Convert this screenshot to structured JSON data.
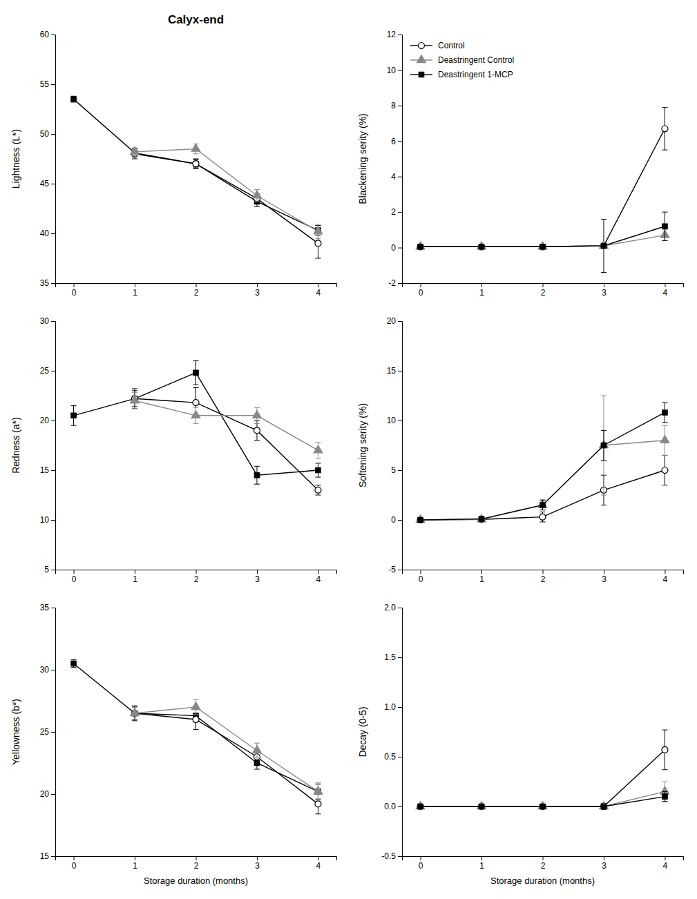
{
  "chart_data": [
    {
      "type": "line",
      "title": "Calyx-end",
      "ylabel": "Lightness (L*)",
      "x": [
        0,
        1,
        2,
        3,
        4
      ],
      "xlim": [
        -0.3,
        4.3
      ],
      "xticks": [
        0,
        1,
        2,
        3,
        4
      ],
      "ylim": [
        35,
        60
      ],
      "yticks": [
        35,
        40,
        45,
        50,
        55,
        60
      ],
      "grid": false,
      "series": [
        {
          "name": "Deastringent 1-MCP",
          "color": "#000000",
          "marker": "square",
          "values": [
            53.5,
            48.1,
            47.0,
            43.2,
            40.3
          ],
          "errors": [
            0.3,
            0.4,
            0.4,
            0.5,
            0.5
          ]
        },
        {
          "name": "Control",
          "color": "#000000",
          "marker": "open-circle",
          "values": [
            null,
            48.0,
            47.0,
            43.5,
            39.0
          ],
          "errors": [
            null,
            0.5,
            0.5,
            0.5,
            1.5
          ]
        },
        {
          "name": "Deastringent Control",
          "color": "#888888",
          "marker": "triangle",
          "values": [
            null,
            48.2,
            48.5,
            43.8,
            40.2
          ],
          "errors": [
            null,
            0.4,
            0.5,
            0.6,
            0.7
          ]
        }
      ]
    },
    {
      "type": "line",
      "ylabel": "Blackening serity (%)",
      "x": [
        0,
        1,
        2,
        3,
        4
      ],
      "xlim": [
        -0.3,
        4.3
      ],
      "xticks": [
        0,
        1,
        2,
        3,
        4
      ],
      "ylim": [
        -2,
        12
      ],
      "yticks": [
        -2,
        0,
        2,
        4,
        6,
        8,
        10,
        12
      ],
      "grid": false,
      "legend": "upper left",
      "series": [
        {
          "name": "Control",
          "color": "#000000",
          "marker": "open-circle",
          "values": [
            0.05,
            0.05,
            0.05,
            0.1,
            6.7
          ],
          "errors": [
            0.05,
            0.05,
            0.05,
            1.5,
            1.2
          ]
        },
        {
          "name": "Deastringent Control",
          "color": "#888888",
          "marker": "triangle",
          "values": [
            0.05,
            0.05,
            0.05,
            0.1,
            0.7
          ],
          "errors": [
            0.05,
            0.05,
            0.05,
            0.1,
            0.3
          ]
        },
        {
          "name": "Deastringent 1-MCP",
          "color": "#000000",
          "marker": "square",
          "values": [
            0.05,
            0.05,
            0.05,
            0.1,
            1.2
          ],
          "errors": [
            0.05,
            0.05,
            0.05,
            0.1,
            0.8
          ]
        }
      ]
    },
    {
      "type": "line",
      "ylabel": "Redness (a*)",
      "x": [
        0,
        1,
        2,
        3,
        4
      ],
      "xlim": [
        -0.3,
        4.3
      ],
      "xticks": [
        0,
        1,
        2,
        3,
        4
      ],
      "ylim": [
        5,
        30
      ],
      "yticks": [
        5,
        10,
        15,
        20,
        25,
        30
      ],
      "grid": false,
      "series": [
        {
          "name": "Deastringent 1-MCP",
          "color": "#000000",
          "marker": "square",
          "values": [
            20.5,
            22.2,
            24.8,
            14.5,
            15.0
          ],
          "errors": [
            1.0,
            0.8,
            1.2,
            0.9,
            0.7
          ]
        },
        {
          "name": "Control",
          "color": "#000000",
          "marker": "open-circle",
          "values": [
            null,
            22.2,
            21.8,
            19.0,
            13.0
          ],
          "errors": [
            null,
            1.0,
            1.5,
            1.0,
            0.5
          ]
        },
        {
          "name": "Deastringent Control",
          "color": "#888888",
          "marker": "triangle",
          "values": [
            null,
            22.0,
            20.5,
            20.5,
            17.0
          ],
          "errors": [
            null,
            0.8,
            0.8,
            0.8,
            0.8
          ]
        }
      ]
    },
    {
      "type": "line",
      "ylabel": "Softening serity (%)",
      "x": [
        0,
        1,
        2,
        3,
        4
      ],
      "xlim": [
        -0.3,
        4.3
      ],
      "xticks": [
        0,
        1,
        2,
        3,
        4
      ],
      "ylim": [
        -5,
        20
      ],
      "yticks": [
        -5,
        0,
        5,
        10,
        15,
        20
      ],
      "grid": false,
      "series": [
        {
          "name": "Control",
          "color": "#000000",
          "marker": "open-circle",
          "values": [
            0.0,
            0.05,
            0.3,
            3.0,
            5.0
          ],
          "errors": [
            0.0,
            0.05,
            0.5,
            1.5,
            1.5
          ]
        },
        {
          "name": "Deastringent Control",
          "color": "#888888",
          "marker": "triangle",
          "values": [
            0.0,
            0.05,
            1.5,
            7.5,
            8.0
          ],
          "errors": [
            0.0,
            0.05,
            0.5,
            5.0,
            1.5
          ]
        },
        {
          "name": "Deastringent 1-MCP",
          "color": "#000000",
          "marker": "square",
          "values": [
            0.0,
            0.1,
            1.5,
            7.5,
            10.8
          ],
          "errors": [
            0.0,
            0.05,
            0.5,
            1.5,
            1.0
          ]
        }
      ]
    },
    {
      "type": "line",
      "ylabel": "Yellowness (b*)",
      "xlabel": "Storage duration (months)",
      "x": [
        0,
        1,
        2,
        3,
        4
      ],
      "xlim": [
        -0.3,
        4.3
      ],
      "xticks": [
        0,
        1,
        2,
        3,
        4
      ],
      "ylim": [
        15,
        35
      ],
      "yticks": [
        15,
        20,
        25,
        30,
        35
      ],
      "grid": false,
      "series": [
        {
          "name": "Deastringent 1-MCP",
          "color": "#000000",
          "marker": "square",
          "values": [
            30.5,
            26.5,
            26.3,
            22.5,
            20.2
          ],
          "errors": [
            0.3,
            0.5,
            0.5,
            0.5,
            0.6
          ]
        },
        {
          "name": "Control",
          "color": "#000000",
          "marker": "open-circle",
          "values": [
            null,
            26.5,
            26.0,
            23.0,
            19.2
          ],
          "errors": [
            null,
            0.6,
            0.8,
            0.6,
            0.8
          ]
        },
        {
          "name": "Deastringent Control",
          "color": "#888888",
          "marker": "triangle",
          "values": [
            null,
            26.5,
            27.0,
            23.5,
            20.2
          ],
          "errors": [
            null,
            0.5,
            0.6,
            0.6,
            0.7
          ]
        }
      ]
    },
    {
      "type": "line",
      "ylabel": "Decay (0-5)",
      "xlabel": "Storage duration (months)",
      "x": [
        0,
        1,
        2,
        3,
        4
      ],
      "xlim": [
        -0.3,
        4.3
      ],
      "xticks": [
        0,
        1,
        2,
        3,
        4
      ],
      "ylim": [
        -0.5,
        2.0
      ],
      "yticks": [
        -0.5,
        {
          "value": 0.0,
          "label": "0.0"
        },
        0.5,
        {
          "value": 1.0,
          "label": "1.0"
        },
        1.5,
        {
          "value": 2.0,
          "label": "2.0"
        }
      ],
      "grid": false,
      "series": [
        {
          "name": "Control",
          "color": "#000000",
          "marker": "open-circle",
          "values": [
            0.0,
            0.0,
            0.0,
            0.0,
            0.57
          ],
          "errors": [
            0.0,
            0.0,
            0.0,
            0.03,
            0.2
          ]
        },
        {
          "name": "Deastringent Control",
          "color": "#888888",
          "marker": "triangle",
          "values": [
            0.0,
            0.0,
            0.0,
            0.0,
            0.15
          ],
          "errors": [
            0.0,
            0.0,
            0.0,
            0.02,
            0.1
          ]
        },
        {
          "name": "Deastringent 1-MCP",
          "color": "#000000",
          "marker": "square",
          "values": [
            0.0,
            0.0,
            0.0,
            0.0,
            0.1
          ],
          "errors": [
            0.0,
            0.0,
            0.0,
            0.02,
            0.05
          ]
        }
      ]
    }
  ]
}
